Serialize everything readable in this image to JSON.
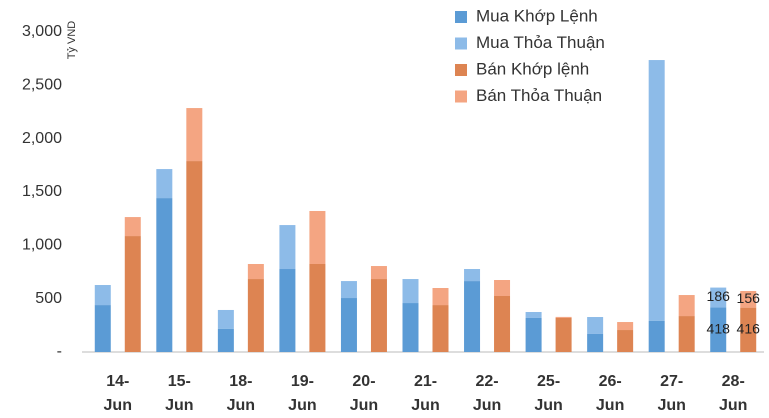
{
  "chart_data": {
    "type": "grouped_stacked_bar",
    "y_label": "Tỷ VND",
    "categories": [
      "14-Jun",
      "15-Jun",
      "18-Jun",
      "19-Jun",
      "20-Jun",
      "21-Jun",
      "22-Jun",
      "25-Jun",
      "26-Jun",
      "27-Jun",
      "28-Jun"
    ],
    "series": [
      {
        "name": "Mua Khớp Lệnh",
        "color": "#5b9bd5",
        "stack": "Mua",
        "values": [
          440,
          1443,
          216,
          778,
          506,
          459,
          665,
          319,
          169,
          291,
          418
        ]
      },
      {
        "name": "Mua Thỏa Thuận",
        "color": "#8dbbe8",
        "stack": "Mua",
        "values": [
          188,
          272,
          178,
          412,
          159,
          225,
          113,
          56,
          159,
          2446,
          186
        ]
      },
      {
        "name": "Bán Khớp lệnh",
        "color": "#dd8452",
        "stack": "Bán",
        "values": [
          1087,
          1790,
          684,
          825,
          684,
          440,
          525,
          319,
          206,
          337,
          416
        ]
      },
      {
        "name": "Bán Thỏa Thuận",
        "color": "#f4a582",
        "stack": "Bán",
        "values": [
          178,
          497,
          141,
          497,
          122,
          160,
          150,
          10,
          75,
          197,
          156
        ]
      }
    ],
    "data_labels": "last",
    "ylim": [
      0,
      3000
    ],
    "yticks": [
      {
        "value": 0,
        "label": "-"
      },
      500,
      {
        "value": 1000,
        "label": "1,000"
      },
      {
        "value": 1500,
        "label": "1,500"
      },
      {
        "value": 2000,
        "label": "2,000"
      },
      {
        "value": 2500,
        "label": "2,500"
      },
      {
        "value": 3000,
        "label": "3,000"
      }
    ],
    "grid": false,
    "legend": "top-right"
  }
}
